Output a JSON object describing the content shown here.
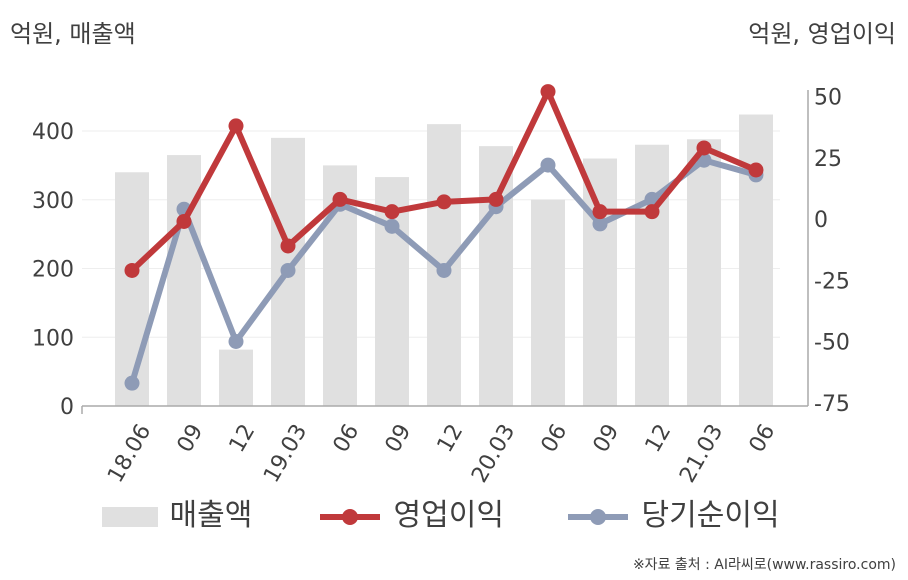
{
  "units": {
    "left": "억원, 매출액",
    "right": "억원, 영업이익"
  },
  "source": "※자료 출처 : AI라씨로(www.rassiro.com)",
  "colors": {
    "revenue": "#e0e0e0",
    "operating": "#c0393b",
    "net": "#8e9bb6",
    "axis": "#aaaaaa",
    "grid": "#eeeeee",
    "text": "#404040"
  },
  "chart_data": {
    "type": "bar",
    "categories": [
      "18.06",
      "09",
      "12",
      "19.03",
      "06",
      "09",
      "12",
      "20.03",
      "06",
      "09",
      "12",
      "21.03",
      "06"
    ],
    "y_left": {
      "ylim": [
        0,
        500
      ],
      "ticks": [
        "0",
        "100",
        "200",
        "300",
        "400"
      ],
      "tick_values": [
        0,
        100,
        200,
        300,
        400
      ]
    },
    "y_right": {
      "ylim": [
        -75,
        50
      ],
      "ticks": [
        "50",
        "25",
        "0",
        "-25",
        "-50",
        "-75"
      ],
      "tick_values": [
        50,
        25,
        0,
        -25,
        -50,
        -75
      ]
    },
    "series": [
      {
        "name": "매출액",
        "type": "bar",
        "axis": "left",
        "values": [
          340,
          365,
          82,
          390,
          350,
          333,
          410,
          378,
          300,
          360,
          380,
          388,
          424
        ]
      },
      {
        "name": "영업이익",
        "type": "line",
        "axis": "right",
        "values": [
          -21,
          -1,
          38,
          -11,
          8,
          3,
          7,
          8,
          52,
          3,
          3,
          29,
          20
        ]
      },
      {
        "name": "당기순이익",
        "type": "line",
        "axis": "right",
        "values": [
          -67,
          4,
          -50,
          -21,
          6,
          -3,
          -21,
          5,
          22,
          -2,
          8,
          24,
          18
        ]
      }
    ],
    "grid": true,
    "legend": "bottom"
  }
}
